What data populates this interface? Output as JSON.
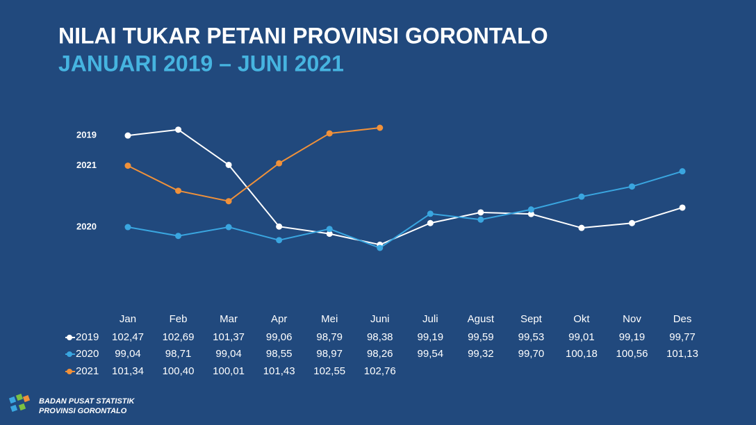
{
  "chart_data": {
    "type": "line",
    "title": "NILAI TUKAR PETANI PROVINSI GORONTALO",
    "subtitle": "JANUARI 2019 – JUNI 2021",
    "categories": [
      "Jan",
      "Feb",
      "Mar",
      "Apr",
      "Mei",
      "Juni",
      "Juli",
      "Agust",
      "Sept",
      "Okt",
      "Nov",
      "Des"
    ],
    "series": [
      {
        "name": "2019",
        "color": "#ffffff",
        "values": [
          102.47,
          102.69,
          101.37,
          99.06,
          98.79,
          98.38,
          99.19,
          99.59,
          99.53,
          99.01,
          99.19,
          99.77
        ],
        "value_labels": [
          "102,47",
          "102,69",
          "101,37",
          "99,06",
          "98,79",
          "98,38",
          "99,19",
          "99,59",
          "99,53",
          "99,01",
          "99,19",
          "99,77"
        ]
      },
      {
        "name": "2020",
        "color": "#3aa6e0",
        "values": [
          99.04,
          98.71,
          99.04,
          98.55,
          98.97,
          98.26,
          99.54,
          99.32,
          99.7,
          100.18,
          100.56,
          101.13
        ],
        "value_labels": [
          "99,04",
          "98,71",
          "99,04",
          "98,55",
          "98,97",
          "98,26",
          "99,54",
          "99,32",
          "99,70",
          "100,18",
          "100,56",
          "101,13"
        ]
      },
      {
        "name": "2021",
        "color": "#f0913a",
        "values": [
          101.34,
          100.4,
          100.01,
          101.43,
          102.55,
          102.76,
          null,
          null,
          null,
          null,
          null,
          null
        ],
        "value_labels": [
          "101,34",
          "100,40",
          "100,01",
          "101,43",
          "102,55",
          "102,76",
          null,
          null,
          null,
          null,
          null,
          null
        ]
      }
    ]
  },
  "footer": {
    "line1": "BADAN PUSAT STATISTIK",
    "line2": "PROVINSI GORONTALO"
  }
}
